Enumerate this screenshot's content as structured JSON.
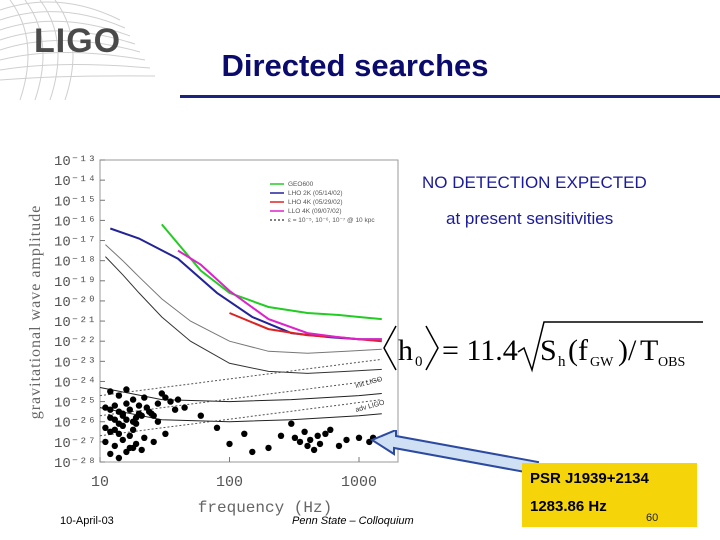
{
  "slide": {
    "logo_text": "LIGO",
    "title": "Directed searches",
    "no_detection": "NO DETECTION EXPECTED",
    "sensitivity_note": "at present sensitivities",
    "formula": {
      "h0": "h",
      "h0_sub": "0",
      "eq": "= 11.4",
      "sh": "S",
      "sh_sub": "h",
      "fgw": "f",
      "fgw_sub": "GW",
      "tobs": "T",
      "tobs_sub": "OBS"
    },
    "psr_name": "PSR J1939+2134",
    "psr_freq": "1283.86 Hz",
    "footer_date": "10-April-03",
    "footer_center": "Penn State – Colloquium",
    "page_number": "60"
  },
  "colors": {
    "title": "#0b0b6e",
    "rule": "#1a237e",
    "highlight": "#f5d50a",
    "arrow_fill": "#cfe0f5",
    "arrow_stroke": "#2c4aa0"
  },
  "chart_data": {
    "type": "line",
    "xlabel": "frequency (Hz)",
    "ylabel": "gravitational wave amplitude",
    "xscale": "log",
    "yscale": "log",
    "xlim": [
      10,
      2000
    ],
    "ylim": [
      1e-28,
      1e-13
    ],
    "x_ticks": [
      "10",
      "100",
      "1000"
    ],
    "y_ticks": [
      "10⁻¹³",
      "10⁻¹⁴",
      "10⁻¹⁵",
      "10⁻¹⁶",
      "10⁻¹⁷",
      "10⁻¹⁸",
      "10⁻¹⁹",
      "10⁻²⁰",
      "10⁻²¹",
      "10⁻²²",
      "10⁻²³",
      "10⁻²⁴",
      "10⁻²⁵",
      "10⁻²⁶",
      "10⁻²⁷",
      "10⁻²⁸"
    ],
    "legend": [
      "GEO600",
      "LHO 2K (05/14/02)",
      "LHO 4K (05/29/02)",
      "LLO 4K (09/07/02)",
      "ε = 10⁻⁵, 10⁻⁶, 10⁻⁷  @ 10 kpc"
    ],
    "legend_position": "top-right",
    "curve_labels": [
      "init LIGO",
      "adv LIGO"
    ],
    "series": [
      {
        "name": "GEO600",
        "color": "#22cc22",
        "x": [
          30,
          60,
          100,
          200,
          400,
          700,
          1000,
          1500
        ],
        "y": [
          -16.2,
          -18.5,
          -19.6,
          -20.3,
          -20.6,
          -20.7,
          -20.8,
          -20.9
        ]
      },
      {
        "name": "LHO 2K (05/14/02)",
        "color": "#222299",
        "x": [
          12,
          20,
          40,
          80,
          150,
          300,
          600,
          1000,
          1500
        ],
        "y": [
          -16.4,
          -16.9,
          -17.9,
          -19.6,
          -20.8,
          -21.6,
          -21.8,
          -21.9,
          -21.9
        ]
      },
      {
        "name": "LHO 4K (05/29/02)",
        "color": "#dd2222",
        "x": [
          100,
          200,
          400,
          700,
          1000,
          1500
        ],
        "y": [
          -20.6,
          -21.4,
          -21.7,
          -21.8,
          -21.9,
          -22.0
        ]
      },
      {
        "name": "LLO 4K (09/07/02)",
        "color": "#dd22cc",
        "x": [
          40,
          60,
          100,
          200,
          400,
          700,
          1000,
          1500
        ],
        "y": [
          -17.5,
          -18.2,
          -19.5,
          -20.9,
          -21.6,
          -21.8,
          -21.9,
          -21.9
        ]
      },
      {
        "name": "curve-upper",
        "color": "#777777",
        "x": [
          11,
          15,
          20,
          30,
          50,
          100,
          200,
          400,
          800,
          1500
        ],
        "y": [
          -17.2,
          -18.0,
          -18.8,
          -19.9,
          -21.0,
          -22.0,
          -22.5,
          -22.6,
          -22.5,
          -22.4
        ]
      },
      {
        "name": "curve-middle",
        "color": "#333333",
        "x": [
          11,
          15,
          20,
          30,
          50,
          100,
          200,
          400,
          800,
          1500
        ],
        "y": [
          -17.8,
          -18.7,
          -19.6,
          -20.8,
          -22.0,
          -23.1,
          -23.5,
          -23.6,
          -23.5,
          -23.4
        ]
      },
      {
        "name": "curve-lower",
        "color": "#222222",
        "x": [
          10,
          30,
          100,
          300,
          1000,
          1500
        ],
        "y": [
          -24.3,
          -24.9,
          -25.0,
          -24.9,
          -24.7,
          -24.6
        ]
      },
      {
        "name": "curve-bottom",
        "color": "#222222",
        "x": [
          10,
          30,
          100,
          300,
          1000,
          1500
        ],
        "y": [
          -25.3,
          -25.9,
          -26.0,
          -25.9,
          -25.7,
          -25.6
        ]
      },
      {
        "name": "eps-5",
        "color": "#555555",
        "x": [
          10,
          1500
        ],
        "y": [
          -24.7,
          -22.9
        ]
      },
      {
        "name": "eps-6",
        "color": "#555555",
        "x": [
          10,
          1500
        ],
        "y": [
          -25.7,
          -23.9
        ]
      },
      {
        "name": "eps-7",
        "color": "#555555",
        "x": [
          10,
          1500
        ],
        "y": [
          -26.7,
          -24.9
        ]
      }
    ],
    "pulsars": {
      "x": [
        11,
        12,
        13,
        14,
        15,
        16,
        17,
        12,
        13,
        14,
        15,
        16,
        18,
        19,
        20,
        11,
        12,
        13,
        14,
        15,
        17,
        18,
        19,
        21,
        23,
        25,
        28,
        30,
        32,
        35,
        38,
        12,
        14,
        16,
        18,
        20,
        22,
        24,
        26,
        28,
        11,
        13,
        15,
        17,
        19,
        21,
        12,
        14,
        16,
        18,
        22,
        26,
        32,
        40,
        45,
        60,
        80,
        100,
        130,
        150,
        200,
        250,
        300,
        320,
        350,
        380,
        400,
        420,
        450,
        480,
        500,
        550,
        600,
        700,
        800,
        1000,
        1200,
        1284
      ],
      "y": [
        -25.3,
        -25.4,
        -25.2,
        -25.5,
        -25.6,
        -25.1,
        -25.4,
        -25.8,
        -25.9,
        -26.1,
        -25.7,
        -25.9,
        -26.0,
        -25.8,
        -25.6,
        -26.3,
        -26.5,
        -26.4,
        -26.6,
        -26.2,
        -26.7,
        -26.4,
        -26.1,
        -25.7,
        -25.3,
        -25.6,
        -25.1,
        -24.6,
        -24.8,
        -25.0,
        -25.4,
        -24.5,
        -24.7,
        -24.4,
        -24.9,
        -25.2,
        -24.8,
        -25.5,
        -25.7,
        -26.0,
        -27.0,
        -27.2,
        -26.9,
        -27.3,
        -27.1,
        -27.4,
        -27.6,
        -27.8,
        -27.5,
        -27.3,
        -26.8,
        -27.0,
        -26.6,
        -24.9,
        -25.3,
        -25.7,
        -26.3,
        -27.1,
        -26.6,
        -27.5,
        -27.3,
        -26.7,
        -26.1,
        -26.8,
        -27.0,
        -26.5,
        -27.2,
        -26.9,
        -27.4,
        -26.7,
        -27.1,
        -26.6,
        -26.4,
        -27.2,
        -26.9,
        -26.8,
        -27.0,
        -26.8
      ]
    }
  }
}
